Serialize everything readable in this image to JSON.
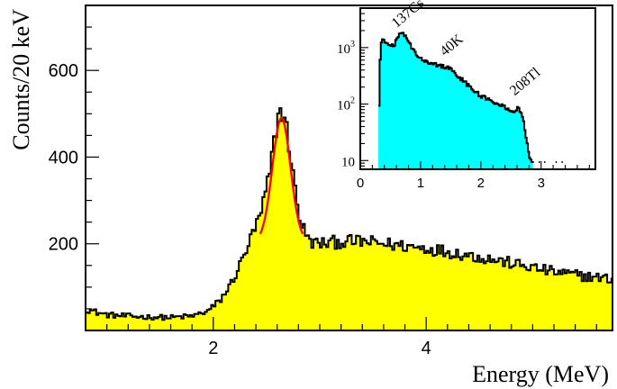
{
  "chart_data": [
    {
      "type": "histogram",
      "panel": "main",
      "xlabel": "Energy (MeV)",
      "ylabel": "Counts/20 keV",
      "xlim": [
        0.8,
        5.75
      ],
      "ylim": [
        0,
        750
      ],
      "x_ticks": [
        2,
        4
      ],
      "y_ticks": [
        200,
        400,
        600
      ],
      "x_tick_labels": [
        "2",
        "4"
      ],
      "y_tick_labels": [
        "200",
        "400",
        "600"
      ],
      "bin_width_mev": 0.02,
      "fill_color": "#ffff00",
      "line_color": "#000000",
      "spectrum_points": [
        {
          "x": 0.8,
          "y": 50
        },
        {
          "x": 0.9,
          "y": 42
        },
        {
          "x": 1.0,
          "y": 36
        },
        {
          "x": 1.2,
          "y": 33
        },
        {
          "x": 1.4,
          "y": 31
        },
        {
          "x": 1.6,
          "y": 30
        },
        {
          "x": 1.8,
          "y": 33
        },
        {
          "x": 1.95,
          "y": 45
        },
        {
          "x": 2.05,
          "y": 65
        },
        {
          "x": 2.15,
          "y": 100
        },
        {
          "x": 2.25,
          "y": 150
        },
        {
          "x": 2.35,
          "y": 210
        },
        {
          "x": 2.45,
          "y": 270
        },
        {
          "x": 2.52,
          "y": 350
        },
        {
          "x": 2.58,
          "y": 450
        },
        {
          "x": 2.62,
          "y": 510
        },
        {
          "x": 2.66,
          "y": 500
        },
        {
          "x": 2.7,
          "y": 450
        },
        {
          "x": 2.76,
          "y": 340
        },
        {
          "x": 2.82,
          "y": 250
        },
        {
          "x": 2.9,
          "y": 205
        },
        {
          "x": 3.0,
          "y": 200
        },
        {
          "x": 3.2,
          "y": 205
        },
        {
          "x": 3.4,
          "y": 205
        },
        {
          "x": 3.6,
          "y": 200
        },
        {
          "x": 3.8,
          "y": 195
        },
        {
          "x": 4.0,
          "y": 190
        },
        {
          "x": 4.3,
          "y": 178
        },
        {
          "x": 4.6,
          "y": 165
        },
        {
          "x": 4.9,
          "y": 150
        },
        {
          "x": 5.2,
          "y": 135
        },
        {
          "x": 5.5,
          "y": 125
        },
        {
          "x": 5.75,
          "y": 118
        }
      ],
      "fit": {
        "type": "gaussian",
        "color": "#ff0000",
        "mean_mev": 2.64,
        "sigma_mev": 0.085,
        "amplitude": 285,
        "baseline": 205,
        "x_range": [
          2.44,
          2.84
        ]
      }
    },
    {
      "type": "histogram",
      "panel": "inset",
      "y_scale": "log",
      "xlim": [
        0,
        3.9
      ],
      "ylim": [
        7,
        5000
      ],
      "x_ticks": [
        0,
        1,
        2,
        3
      ],
      "x_tick_labels": [
        "0",
        "1",
        "2",
        "3"
      ],
      "y_ticks": [
        10,
        100,
        1000
      ],
      "y_tick_labels": [
        {
          "base": "10",
          "exp": ""
        },
        {
          "base": "10",
          "exp": "2"
        },
        {
          "base": "10",
          "exp": "3"
        }
      ],
      "fill_color": "#00ffff",
      "line_color": "#000000",
      "spectrum_points": [
        {
          "x": 0.3,
          "y": 20
        },
        {
          "x": 0.32,
          "y": 500
        },
        {
          "x": 0.36,
          "y": 1500
        },
        {
          "x": 0.42,
          "y": 1300
        },
        {
          "x": 0.5,
          "y": 1000
        },
        {
          "x": 0.58,
          "y": 1200
        },
        {
          "x": 0.66,
          "y": 1900
        },
        {
          "x": 0.74,
          "y": 1700
        },
        {
          "x": 0.85,
          "y": 1000
        },
        {
          "x": 1.0,
          "y": 650
        },
        {
          "x": 1.2,
          "y": 520
        },
        {
          "x": 1.46,
          "y": 440
        },
        {
          "x": 1.6,
          "y": 330
        },
        {
          "x": 1.8,
          "y": 210
        },
        {
          "x": 2.0,
          "y": 140
        },
        {
          "x": 2.2,
          "y": 110
        },
        {
          "x": 2.4,
          "y": 90
        },
        {
          "x": 2.55,
          "y": 70
        },
        {
          "x": 2.62,
          "y": 85
        },
        {
          "x": 2.7,
          "y": 55
        },
        {
          "x": 2.8,
          "y": 12
        },
        {
          "x": 2.9,
          "y": 7
        }
      ],
      "annotations": [
        {
          "label": "137Cs",
          "x": 0.66,
          "y": 1900,
          "rotation": -40
        },
        {
          "label": "40K",
          "x": 1.46,
          "y": 600,
          "rotation": -40
        },
        {
          "label": "208Tl",
          "x": 2.62,
          "y": 120,
          "rotation": -40
        }
      ]
    }
  ]
}
